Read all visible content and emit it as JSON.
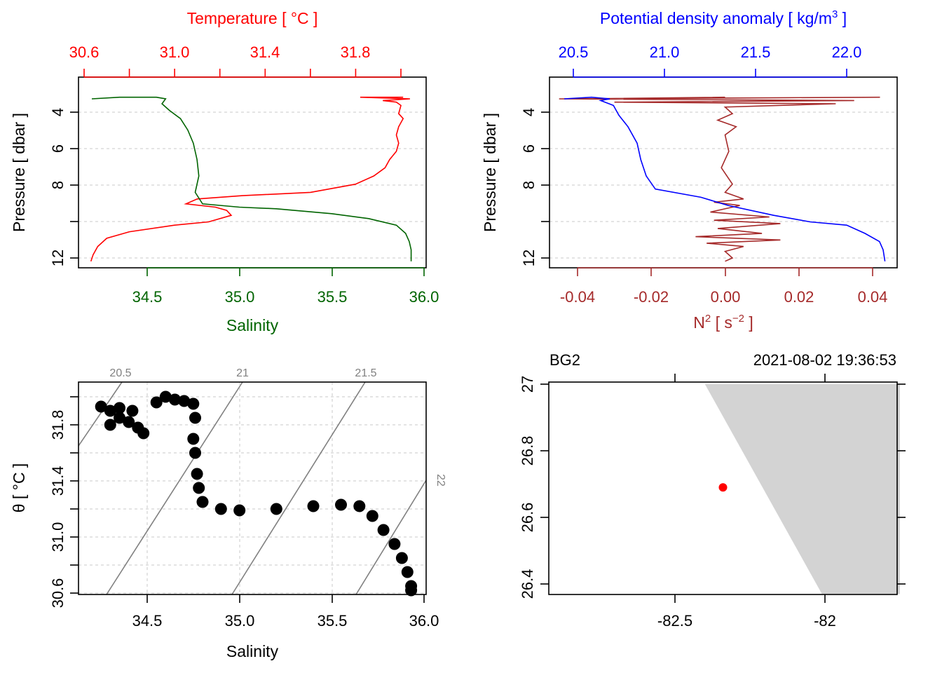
{
  "colors": {
    "temperature": "#ff0000",
    "salinity": "#006400",
    "density": "#0000ff",
    "n2": "#a52a2a",
    "isopycnal": "#808080",
    "land": "#d3d3d3",
    "station": "#ff0000",
    "ts_points": "#000000"
  },
  "chart_data": [
    {
      "id": "ts_profile",
      "type": "line",
      "top_axis": {
        "label": "Temperature [ °C ]",
        "ticks": [
          30.6,
          30.8,
          31.0,
          31.2,
          31.4,
          31.6,
          31.8,
          32.0
        ],
        "tick_labels": [
          "30.6",
          "31.0",
          "31.4",
          "31.8"
        ],
        "range": [
          30.57,
          32.05
        ]
      },
      "bottom_axis": {
        "label": "Salinity",
        "ticks": [
          "34.5",
          "35.0",
          "35.5",
          "36.0"
        ],
        "range": [
          34.15,
          36.02
        ]
      },
      "y_axis": {
        "label": "Pressure [ dbar ]",
        "ticks": [
          "4",
          "6",
          "8",
          "12"
        ],
        "range": [
          12.5,
          1.3
        ],
        "reversed": true
      },
      "grid": true,
      "series": [
        {
          "name": "Temperature",
          "x_axis": "top",
          "points": [
            [
              32.01,
              2.2
            ],
            [
              31.82,
              2.2
            ],
            [
              32.04,
              2.3
            ],
            [
              31.92,
              2.4
            ],
            [
              31.98,
              2.5
            ],
            [
              32.0,
              2.7
            ],
            [
              31.99,
              3.2
            ],
            [
              32.01,
              3.5
            ],
            [
              31.99,
              4.0
            ],
            [
              31.98,
              4.5
            ],
            [
              31.99,
              5.0
            ],
            [
              31.98,
              5.5
            ],
            [
              31.95,
              6.0
            ],
            [
              31.93,
              6.5
            ],
            [
              31.88,
              7.0
            ],
            [
              31.8,
              7.5
            ],
            [
              31.6,
              8.0
            ],
            [
              31.3,
              8.2
            ],
            [
              31.1,
              8.4
            ],
            [
              31.05,
              8.7
            ],
            [
              31.18,
              8.9
            ],
            [
              31.23,
              9.1
            ],
            [
              31.25,
              9.4
            ],
            [
              31.15,
              9.8
            ],
            [
              31.0,
              10.0
            ],
            [
              30.8,
              10.4
            ],
            [
              30.7,
              10.8
            ],
            [
              30.66,
              11.3
            ],
            [
              30.64,
              11.8
            ],
            [
              30.63,
              12.2
            ]
          ]
        },
        {
          "name": "Salinity",
          "x_axis": "bottom",
          "points": [
            [
              34.2,
              2.3
            ],
            [
              34.35,
              2.2
            ],
            [
              34.55,
              2.2
            ],
            [
              34.6,
              2.3
            ],
            [
              34.58,
              2.6
            ],
            [
              34.62,
              3.0
            ],
            [
              34.68,
              3.5
            ],
            [
              34.72,
              4.2
            ],
            [
              34.75,
              5.0
            ],
            [
              34.77,
              6.0
            ],
            [
              34.78,
              7.0
            ],
            [
              34.76,
              8.0
            ],
            [
              34.8,
              8.7
            ],
            [
              35.0,
              8.9
            ],
            [
              35.2,
              9.0
            ],
            [
              35.5,
              9.3
            ],
            [
              35.7,
              9.6
            ],
            [
              35.85,
              10.0
            ],
            [
              35.9,
              10.5
            ],
            [
              35.92,
              11.0
            ],
            [
              35.93,
              11.5
            ],
            [
              35.93,
              12.2
            ]
          ]
        }
      ]
    },
    {
      "id": "density_profile",
      "type": "line",
      "top_axis": {
        "label": "Potential density anomaly [ kg/m",
        "label_sup": "3",
        "label_end": " ]",
        "ticks": [
          "20.5",
          "21.0",
          "21.5",
          "22.0"
        ],
        "range": [
          20.4,
          22.28
        ]
      },
      "bottom_axis": {
        "label": "N",
        "label_sup": "2",
        "label_mid": " [ s",
        "label_sup2": "−2",
        "label_end": " ]",
        "ticks": [
          "-0.04",
          "-0.02",
          "0.00",
          "0.02",
          "0.04"
        ],
        "range": [
          -0.048,
          0.047
        ]
      },
      "y_axis": {
        "label": "Pressure [ dbar ]",
        "ticks": [
          "4",
          "6",
          "8",
          "12"
        ],
        "range": [
          12.5,
          1.3
        ],
        "reversed": true
      },
      "grid": true,
      "series": [
        {
          "name": "Potential density anomaly",
          "x_axis": "top",
          "points": [
            [
              20.45,
              2.3
            ],
            [
              20.6,
              2.2
            ],
            [
              20.7,
              2.3
            ],
            [
              20.65,
              2.4
            ],
            [
              20.72,
              2.7
            ],
            [
              20.75,
              3.3
            ],
            [
              20.8,
              4.0
            ],
            [
              20.85,
              5.0
            ],
            [
              20.87,
              6.0
            ],
            [
              20.9,
              7.0
            ],
            [
              20.95,
              7.8
            ],
            [
              21.2,
              8.3
            ],
            [
              21.35,
              8.8
            ],
            [
              21.6,
              9.4
            ],
            [
              21.8,
              9.8
            ],
            [
              22.0,
              10.0
            ],
            [
              22.1,
              10.5
            ],
            [
              22.18,
              11.0
            ],
            [
              22.2,
              11.5
            ],
            [
              22.21,
              12.2
            ]
          ]
        },
        {
          "name": "N2",
          "x_axis": "bottom",
          "points": [
            [
              0.0,
              2.2
            ],
            [
              -0.04,
              2.3
            ],
            [
              0.042,
              2.2
            ],
            [
              -0.045,
              2.3
            ],
            [
              0.035,
              2.4
            ],
            [
              -0.03,
              2.5
            ],
            [
              0.03,
              2.6
            ],
            [
              0.0,
              2.8
            ],
            [
              0.002,
              3.2
            ],
            [
              -0.002,
              3.6
            ],
            [
              0.003,
              4.0
            ],
            [
              0.0,
              4.5
            ],
            [
              0.001,
              5.5
            ],
            [
              -0.001,
              6.5
            ],
            [
              0.002,
              7.5
            ],
            [
              0.0,
              8.0
            ],
            [
              0.005,
              8.4
            ],
            [
              -0.003,
              8.6
            ],
            [
              0.004,
              8.8
            ],
            [
              -0.004,
              9.2
            ],
            [
              0.012,
              9.5
            ],
            [
              -0.003,
              9.7
            ],
            [
              0.015,
              9.9
            ],
            [
              -0.002,
              10.2
            ],
            [
              0.01,
              10.5
            ],
            [
              -0.008,
              10.7
            ],
            [
              0.015,
              10.9
            ],
            [
              -0.005,
              11.1
            ],
            [
              0.005,
              11.3
            ],
            [
              0.0,
              11.6
            ],
            [
              0.002,
              12.0
            ],
            [
              0.0,
              12.2
            ]
          ]
        }
      ]
    },
    {
      "id": "ts_diagram",
      "type": "scatter",
      "xlabel": "Salinity",
      "ylabel": "θ [ °C ]",
      "x_ticks": [
        "34.5",
        "35.0",
        "35.5",
        "36.0"
      ],
      "y_ticks": [
        "30.6",
        "31.0",
        "31.4",
        "31.8"
      ],
      "xlim": [
        34.15,
        36.02
      ],
      "ylim": [
        30.55,
        32.1
      ],
      "grid": true,
      "isopycnals": [
        {
          "label": "20.5",
          "from": [
            34.15,
            31.64
          ],
          "to": [
            34.38,
            32.1
          ]
        },
        {
          "label": "21",
          "from": [
            34.3,
            30.55
          ],
          "to": [
            35.03,
            32.1
          ]
        },
        {
          "label": "21.5",
          "from": [
            34.97,
            30.55
          ],
          "to": [
            35.69,
            32.1
          ]
        },
        {
          "label": "22",
          "from": [
            35.64,
            30.55
          ],
          "to": [
            36.02,
            31.38
          ]
        }
      ],
      "points": [
        [
          34.25,
          31.93
        ],
        [
          34.3,
          31.9
        ],
        [
          34.35,
          31.85
        ],
        [
          34.4,
          31.82
        ],
        [
          34.45,
          31.78
        ],
        [
          34.48,
          31.74
        ],
        [
          34.3,
          31.8
        ],
        [
          34.35,
          31.92
        ],
        [
          34.42,
          31.9
        ],
        [
          34.55,
          31.96
        ],
        [
          34.6,
          32.0
        ],
        [
          34.65,
          31.98
        ],
        [
          34.7,
          31.97
        ],
        [
          34.75,
          31.95
        ],
        [
          34.76,
          31.85
        ],
        [
          34.75,
          31.7
        ],
        [
          34.76,
          31.6
        ],
        [
          34.77,
          31.45
        ],
        [
          34.78,
          31.35
        ],
        [
          34.8,
          31.25
        ],
        [
          34.9,
          31.2
        ],
        [
          35.0,
          31.19
        ],
        [
          35.2,
          31.2
        ],
        [
          35.4,
          31.22
        ],
        [
          35.55,
          31.23
        ],
        [
          35.65,
          31.22
        ],
        [
          35.72,
          31.15
        ],
        [
          35.78,
          31.05
        ],
        [
          35.84,
          30.95
        ],
        [
          35.88,
          30.85
        ],
        [
          35.91,
          30.75
        ],
        [
          35.93,
          30.65
        ],
        [
          35.93,
          30.62
        ]
      ]
    },
    {
      "id": "map",
      "type": "map",
      "station": "BG2",
      "datetime": "2021-08-02 19:36:53",
      "x_ticks": [
        "-82.5",
        "-82"
      ],
      "y_ticks": [
        "26.4",
        "26.6",
        "26.8",
        "27"
      ],
      "xlim": [
        -82.93,
        -81.75
      ],
      "ylim": [
        26.37,
        27.0
      ],
      "station_lon": -82.34,
      "station_lat": 26.69,
      "land_polygon": [
        [
          -82.4,
          27.0
        ],
        [
          -81.75,
          27.0
        ],
        [
          -81.75,
          26.37
        ],
        [
          -82.01,
          26.37
        ]
      ]
    }
  ]
}
